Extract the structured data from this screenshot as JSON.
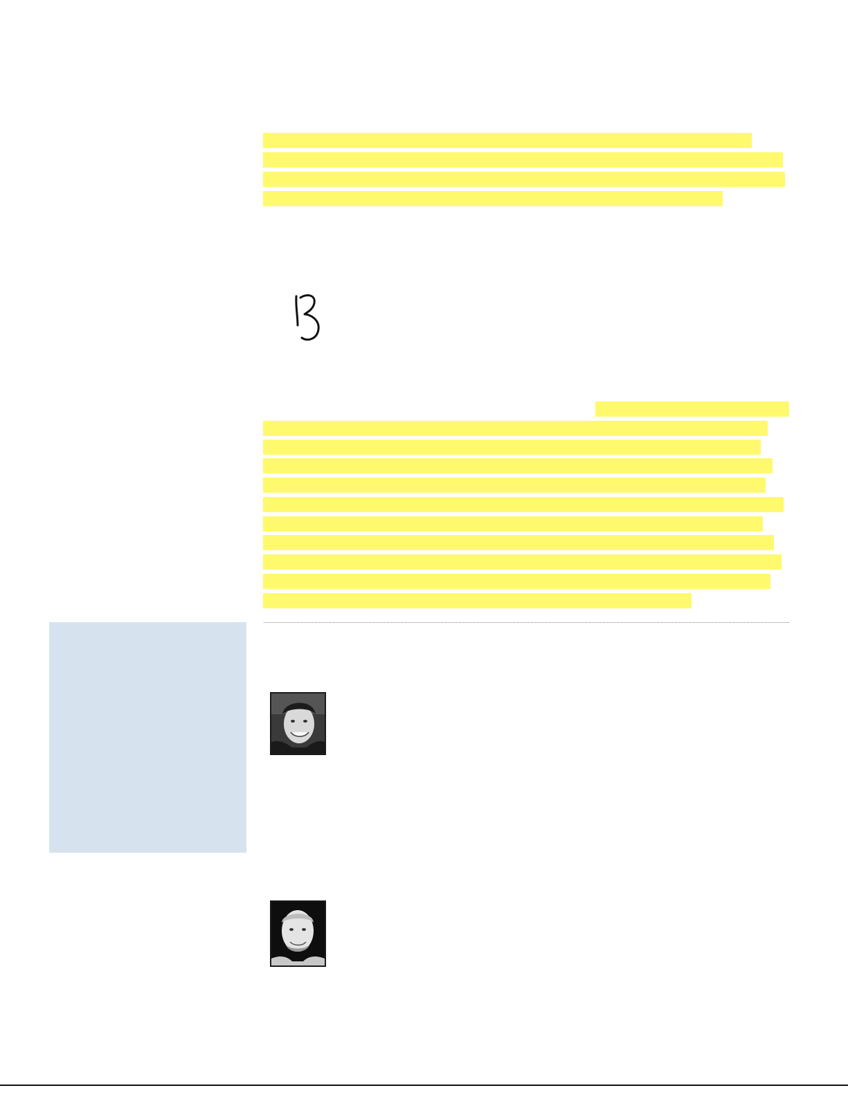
{
  "document": {
    "intro_block": {
      "kind": "highlighted redacted text",
      "line_count": 4
    },
    "signature": {
      "glyph": "B",
      "style": "handwritten"
    },
    "body_block": {
      "kind": "highlighted redacted text",
      "line_count": 11
    },
    "sidebar": {
      "kind": "empty tinted box"
    },
    "author_photos": [
      {
        "name": "author-photo-1",
        "style": "black-and-white portrait"
      },
      {
        "name": "author-photo-2",
        "style": "black-and-white portrait"
      }
    ]
  },
  "colors": {
    "highlight": "#fff96e",
    "sidebar_fill": "#d6e3ef",
    "rule": "#111111",
    "divider": "#7f7f7f",
    "ink": "#1a1a1a"
  }
}
